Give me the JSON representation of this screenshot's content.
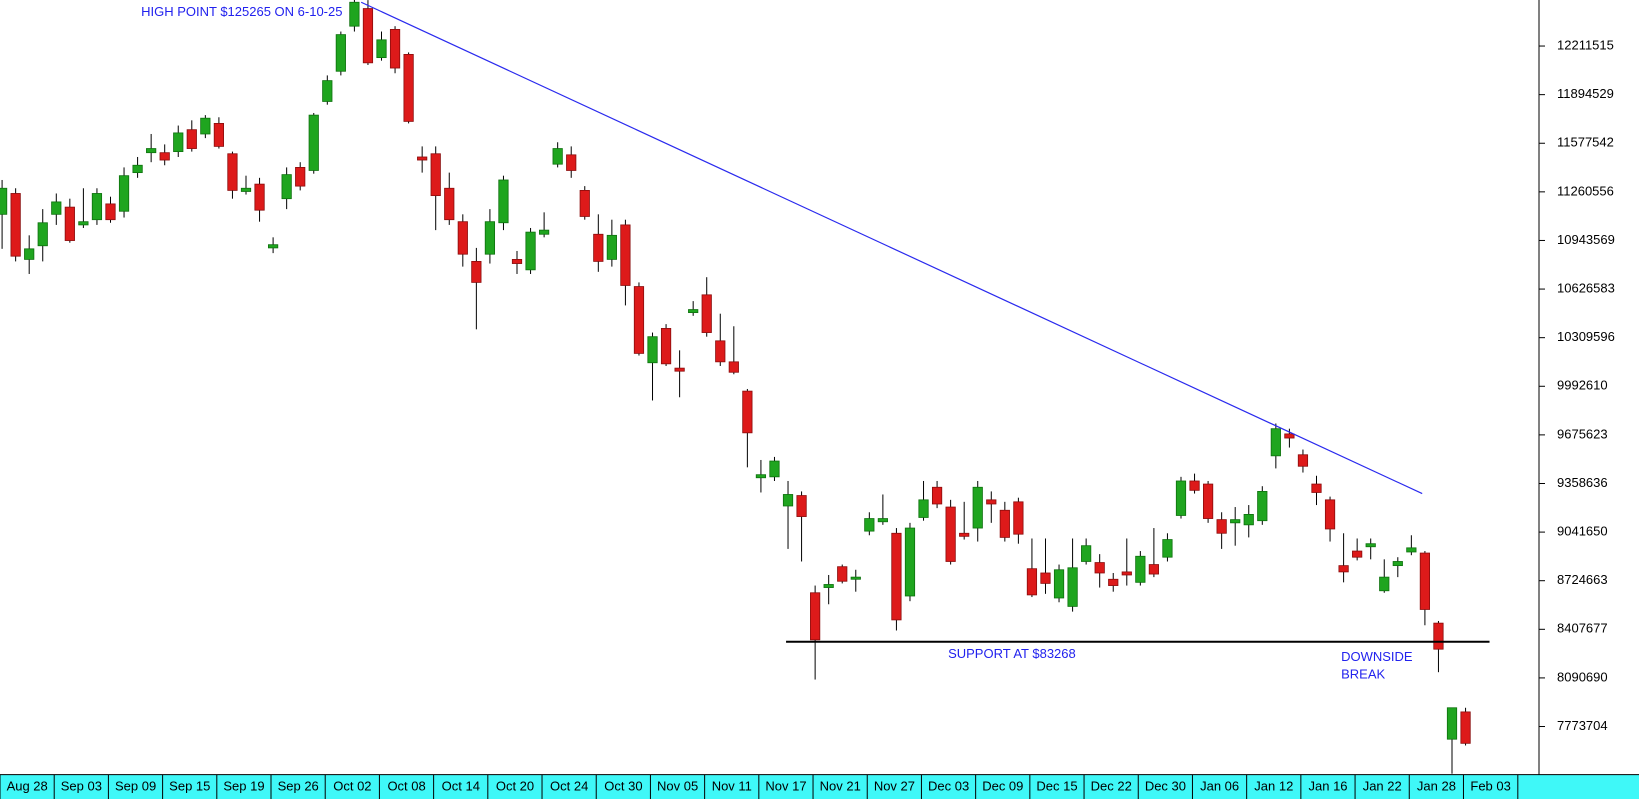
{
  "chart_data": {
    "type": "candlestick",
    "annotations": {
      "high": "HIGH POINT $125265 ON 6-10-25",
      "support": "SUPPORT AT $83268",
      "break": [
        "DOWNSIDE",
        "BREAK"
      ]
    },
    "support_level": 8326800,
    "trend_line": {
      "x": [
        26.5,
        104.8
      ],
      "y": [
        12497000,
        9293000
      ]
    },
    "up_color": "#1fa51f",
    "down_color": "#dd1a1a",
    "line_color": "#2a2aee",
    "text_color": "#2222ee",
    "xlim": [
      -0.154,
      113.42
    ],
    "ylim": [
      7466000,
      12530000
    ],
    "yticks": [
      12211515,
      11894529,
      11577542,
      11260556,
      10943569,
      10626583,
      10309596,
      9992610,
      9675623,
      9358636,
      9041650,
      8724663,
      8407677,
      8090690,
      7773704
    ],
    "xticks": [
      {
        "value": 0,
        "label": "Aug 28"
      },
      {
        "value": 4,
        "label": "Sep 03"
      },
      {
        "value": 8,
        "label": "Sep 09"
      },
      {
        "value": 12,
        "label": "Sep 15"
      },
      {
        "value": 16,
        "label": "Sep 19"
      },
      {
        "value": 20,
        "label": "Sep 26"
      },
      {
        "value": 24,
        "label": "Oct 02"
      },
      {
        "value": 28,
        "label": "Oct 08"
      },
      {
        "value": 32,
        "label": "Oct 14"
      },
      {
        "value": 36,
        "label": "Oct 20"
      },
      {
        "value": 40,
        "label": "Oct 24"
      },
      {
        "value": 44,
        "label": "Oct 30"
      },
      {
        "value": 48,
        "label": "Nov 05"
      },
      {
        "value": 52,
        "label": "Nov 11"
      },
      {
        "value": 56,
        "label": "Nov 17"
      },
      {
        "value": 60,
        "label": "Nov 21"
      },
      {
        "value": 64,
        "label": "Nov 27"
      },
      {
        "value": 68,
        "label": "Dec 03"
      },
      {
        "value": 72,
        "label": "Dec 09"
      },
      {
        "value": 76,
        "label": "Dec 15"
      },
      {
        "value": 80,
        "label": "Dec 22"
      },
      {
        "value": 84,
        "label": "Dec 30"
      },
      {
        "value": 88,
        "label": "Jan 06"
      },
      {
        "value": 92,
        "label": "Jan 12"
      },
      {
        "value": 96,
        "label": "Jan 16"
      },
      {
        "value": 100,
        "label": "Jan 22"
      },
      {
        "value": 104,
        "label": "Jan 28"
      },
      {
        "value": 108,
        "label": "Feb 03"
      }
    ],
    "series": {
      "open": [
        11114000,
        11250000,
        10820000,
        10909000,
        11114000,
        11161000,
        11045000,
        11079000,
        11182000,
        11134000,
        11386000,
        11516000,
        11516000,
        11523000,
        11666000,
        11638000,
        11707000,
        11509000,
        11263000,
        11311000,
        10895000,
        11216000,
        11420000,
        11400000,
        11850000,
        12047000,
        12341000,
        12456000,
        12136000,
        12320000,
        12157000,
        11488000,
        11509000,
        11284000,
        11066000,
        10807000,
        10854000,
        11059000,
        10820000,
        10752000,
        10984000,
        11441000,
        11502000,
        11270000,
        10984000,
        10820000,
        11045000,
        10643000,
        10146000,
        10370000,
        10111000,
        10473000,
        10589000,
        10289000,
        10152000,
        9961000,
        9396000,
        9402000,
        9212000,
        9280000,
        8646000,
        8680000,
        8816000,
        8734000,
        9048000,
        9109000,
        9034000,
        8625000,
        9137000,
        9334000,
        9205000,
        9034000,
        9068000,
        9252000,
        9184000,
        9239000,
        8803000,
        8775000,
        8612000,
        8557000,
        8850000,
        8843000,
        8734000,
        8782000,
        8714000,
        8830000,
        8878000,
        9150000,
        9375000,
        9355000,
        9123000,
        9102000,
        9089000,
        9116000,
        9539000,
        9682000,
        9546000,
        9355000,
        9252000,
        8823000,
        8918000,
        8946000,
        8659000,
        8823000,
        8912000,
        8905000,
        8448000,
        7691000,
        7869000
      ],
      "high": [
        11338000,
        11284000,
        10977000,
        11148000,
        11250000,
        11216000,
        11284000,
        11284000,
        11229000,
        11420000,
        11488000,
        11638000,
        11570000,
        11693000,
        11727000,
        11761000,
        11747000,
        11523000,
        11366000,
        11352000,
        10964000,
        11420000,
        11454000,
        11775000,
        12020000,
        12306000,
        12526500,
        12511000,
        12306000,
        12341000,
        12170000,
        11557000,
        11557000,
        11386000,
        11114000,
        10895000,
        11148000,
        11366000,
        10875000,
        11025000,
        11127000,
        11584000,
        11557000,
        11298000,
        11114000,
        11079000,
        11079000,
        10670000,
        10343000,
        10398000,
        10227000,
        10548000,
        10704000,
        10466000,
        10384000,
        9975000,
        9512000,
        9532000,
        9375000,
        9307000,
        8693000,
        8762000,
        8830000,
        8796000,
        9171000,
        9287000,
        9068000,
        9102000,
        9375000,
        9375000,
        9252000,
        9239000,
        9375000,
        9307000,
        9239000,
        9266000,
        9000000,
        9000000,
        8830000,
        9000000,
        9000000,
        8898000,
        8775000,
        9000000,
        8918000,
        9068000,
        9034000,
        9402000,
        9423000,
        9375000,
        9171000,
        9205000,
        9218000,
        9341000,
        9750000,
        9716000,
        9580000,
        9409000,
        9273000,
        9034000,
        9000000,
        9000000,
        8864000,
        8878000,
        9021000,
        8918000,
        8462000,
        7896000,
        7896000
      ],
      "low": [
        10889000,
        10807000,
        10725000,
        10807000,
        11045000,
        10929000,
        11025000,
        11045000,
        11059000,
        11093000,
        11352000,
        11454000,
        11434000,
        11488000,
        11523000,
        11611000,
        11543000,
        11216000,
        11243000,
        11066000,
        10861000,
        11148000,
        11270000,
        11379000,
        11829000,
        12020000,
        12306000,
        12088000,
        12116000,
        12034000,
        11707000,
        11386000,
        11011000,
        11045000,
        10773000,
        10364000,
        10793000,
        11011000,
        10725000,
        10725000,
        10964000,
        11420000,
        11352000,
        11079000,
        10739000,
        10773000,
        10520000,
        10193000,
        9900000,
        10125000,
        9921000,
        10452000,
        10316000,
        10125000,
        10071000,
        9464000,
        9300000,
        9375000,
        8932000,
        8850000,
        8080000,
        8571000,
        8707000,
        8653000,
        9021000,
        9089000,
        8400000,
        8591000,
        9116000,
        9198000,
        8830000,
        8993000,
        8980000,
        9102000,
        8980000,
        8966000,
        8618000,
        8639000,
        8584000,
        8523000,
        8830000,
        8680000,
        8653000,
        8693000,
        8693000,
        8748000,
        8850000,
        9130000,
        9293000,
        9102000,
        8932000,
        8953000,
        9007000,
        9089000,
        9457000,
        9593000,
        9430000,
        9218000,
        8980000,
        8714000,
        8857000,
        8864000,
        8646000,
        8748000,
        8891000,
        8434000,
        8128000,
        7466000,
        7650000
      ],
      "close": [
        11284000,
        10841000,
        10889000,
        11059000,
        11195000,
        10943000,
        11066000,
        11250000,
        11079000,
        11366000,
        11434000,
        11543000,
        11468000,
        11645000,
        11543000,
        11741000,
        11557000,
        11270000,
        11284000,
        11141000,
        10916000,
        11373000,
        11298000,
        11761000,
        11986000,
        12286000,
        12497000,
        12102000,
        12252000,
        12068000,
        11720000,
        11468000,
        11236000,
        11079000,
        10854000,
        10670000,
        11066000,
        11338000,
        10793000,
        10998000,
        11011000,
        11543000,
        11400000,
        11100000,
        10807000,
        10977000,
        10650000,
        10207000,
        10316000,
        10139000,
        10091000,
        10493000,
        10343000,
        10152000,
        10084000,
        9689000,
        9416000,
        9505000,
        9287000,
        9143000,
        8339000,
        8700000,
        8721000,
        8748000,
        9130000,
        9130000,
        8469000,
        9068000,
        9252000,
        9225000,
        8850000,
        9014000,
        9334000,
        9225000,
        9007000,
        9028000,
        8632000,
        8707000,
        8796000,
        8809000,
        8953000,
        8775000,
        8693000,
        8762000,
        8884000,
        8768000,
        8993000,
        9375000,
        9314000,
        9130000,
        9034000,
        9123000,
        9157000,
        9307000,
        9716000,
        9655000,
        9471000,
        9300000,
        9062000,
        8782000,
        8878000,
        8966000,
        8748000,
        8850000,
        8939000,
        8537000,
        8278000,
        7896000,
        7664000
      ]
    }
  }
}
